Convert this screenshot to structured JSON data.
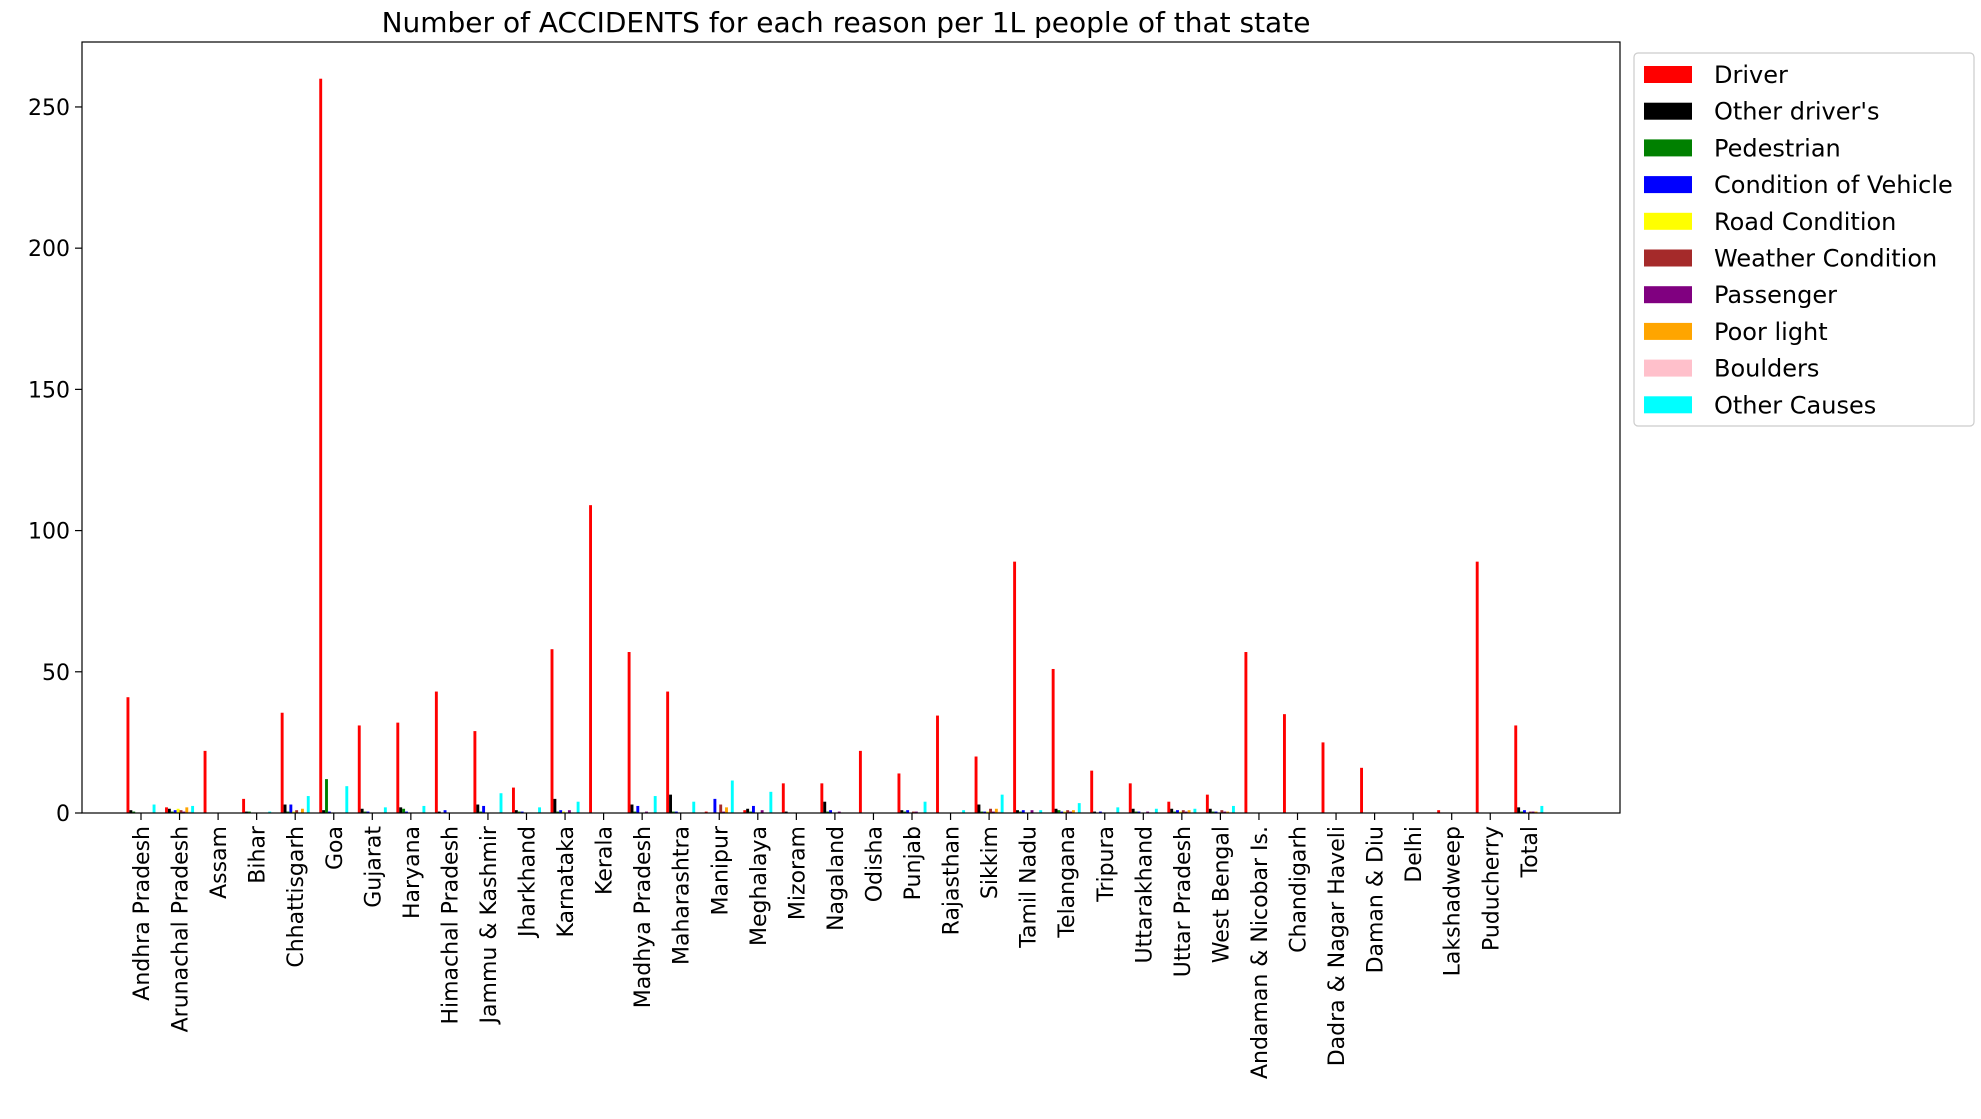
{
  "chart_data": {
    "type": "bar",
    "title": "Number of ACCIDENTS for each reason per 1L people of that state",
    "xlabel": "",
    "ylabel": "",
    "ylim": [
      0,
      273
    ],
    "yticks": [
      0,
      50,
      100,
      150,
      200,
      250
    ],
    "grid": false,
    "legend_position": "top-right (outside plot)",
    "categories": [
      "Andhra Pradesh",
      "Arunachal Pradesh",
      "Assam",
      "Bihar",
      "Chhattisgarh",
      "Goa",
      "Gujarat",
      "Haryana",
      "Himachal Pradesh",
      "Jammu & Kashmir",
      "Jharkhand",
      "Karnataka",
      "Kerala",
      "Madhya Pradesh",
      "Maharashtra",
      "Manipur",
      "Meghalaya",
      "Mizoram",
      "Nagaland",
      "Odisha",
      "Punjab",
      "Rajasthan",
      "Sikkim",
      "Tamil Nadu",
      "Telangana",
      "Tripura",
      "Uttarakhand",
      "Uttar Pradesh",
      "West Bengal",
      "Andaman & Nicobar Is.",
      "Chandigarh",
      "Dadra & Nagar Haveli",
      "Daman & Diu",
      "Delhi",
      "Lakshadweep",
      "Puducherry",
      "Total"
    ],
    "series": [
      {
        "name": "Driver",
        "color": "#ff0000",
        "values": [
          41,
          2,
          22,
          5,
          35.5,
          260,
          31,
          32,
          43,
          29,
          9,
          58,
          109,
          57,
          43,
          0.5,
          1,
          10.5,
          10.5,
          22,
          14,
          34.5,
          20,
          89,
          51,
          15,
          10.5,
          4,
          6.5,
          57,
          35,
          25,
          16,
          0,
          1,
          89,
          31
        ]
      },
      {
        "name": "Other driver's",
        "color": "#000000",
        "values": [
          1,
          1.5,
          0,
          0.5,
          3,
          1,
          1.5,
          2,
          0.5,
          3,
          1,
          5,
          0,
          3,
          6.5,
          0,
          1.5,
          0.5,
          4,
          0,
          1,
          0,
          3,
          1,
          1.5,
          0.5,
          1.5,
          1.5,
          1.5,
          0,
          0,
          0,
          0,
          0,
          0,
          0,
          2
        ]
      },
      {
        "name": "Pedestrian",
        "color": "#008000",
        "values": [
          0.5,
          0.5,
          0,
          0.5,
          0.5,
          12,
          0.5,
          1.5,
          0,
          0.5,
          0.5,
          0.5,
          0,
          0.5,
          0.5,
          0,
          0.5,
          0,
          0.5,
          0,
          0.5,
          0,
          0.5,
          0.5,
          1,
          0,
          0.5,
          0.5,
          0.5,
          0,
          0,
          0,
          0,
          0,
          0,
          0,
          0.5
        ]
      },
      {
        "name": "Condition of Vehicle",
        "color": "#0000ff",
        "values": [
          0,
          1,
          0,
          0,
          3,
          0.5,
          0.5,
          0.5,
          1,
          2.5,
          0.5,
          1,
          0,
          2.5,
          0.5,
          5,
          2.5,
          0,
          1,
          0,
          1,
          0,
          0.5,
          1,
          0.5,
          0.5,
          0.5,
          1,
          0.5,
          0,
          0,
          0,
          0,
          0,
          0,
          0,
          1
        ]
      },
      {
        "name": "Road Condition",
        "color": "#ffff00",
        "values": [
          0,
          1.5,
          0,
          0,
          0.5,
          0,
          0,
          0,
          0,
          0,
          0,
          0.5,
          0,
          0,
          0,
          0,
          0,
          0,
          0,
          0,
          0,
          0,
          0.5,
          0,
          0.5,
          0,
          0,
          0.5,
          0,
          0,
          0,
          0,
          0,
          0,
          0,
          0,
          0
        ]
      },
      {
        "name": "Weather Condition",
        "color": "#a52a2a",
        "values": [
          0,
          1,
          0,
          0,
          1,
          0,
          0,
          0,
          0,
          0,
          0,
          0,
          0,
          0,
          0,
          3,
          0,
          0,
          0,
          0,
          0.5,
          0,
          1.5,
          0,
          1,
          0,
          0,
          1,
          1,
          0,
          0,
          0,
          0,
          0,
          0,
          0,
          0.5
        ]
      },
      {
        "name": "Passenger",
        "color": "#800080",
        "values": [
          0,
          0.5,
          0,
          0,
          0,
          0,
          0,
          0,
          0,
          0,
          0,
          1,
          0,
          0.5,
          0,
          0.5,
          1,
          0,
          0.5,
          0,
          0.5,
          0,
          0.5,
          1,
          0.5,
          0,
          0.5,
          0.5,
          0.5,
          0,
          0,
          0,
          0,
          0,
          0,
          0,
          0.5
        ]
      },
      {
        "name": "Poor light",
        "color": "#ffa500",
        "values": [
          0,
          2,
          0,
          0,
          1.5,
          0,
          0,
          0,
          0,
          0,
          0,
          0,
          0,
          0,
          0,
          2,
          0,
          0,
          0,
          0,
          0,
          0,
          1.5,
          0,
          1,
          0,
          0,
          1,
          0.5,
          0,
          0,
          0,
          0,
          0,
          0,
          0,
          0.5
        ]
      },
      {
        "name": "Boulders",
        "color": "#ffc0cb",
        "values": [
          0,
          0.5,
          0,
          0,
          0,
          0,
          0,
          0,
          0,
          0,
          0,
          0,
          0,
          0,
          0,
          0,
          0,
          0,
          0,
          0,
          0,
          0,
          0.5,
          0,
          0,
          0,
          0,
          0,
          0,
          0,
          0,
          0,
          0,
          0,
          0,
          0,
          0
        ]
      },
      {
        "name": "Other Causes",
        "color": "#00ffff",
        "values": [
          3,
          2.5,
          0,
          0.5,
          6,
          9.5,
          2,
          2.5,
          0,
          7,
          2,
          4,
          0,
          6,
          4,
          11.5,
          7.5,
          0,
          0,
          0,
          4,
          1,
          6.5,
          1,
          3.5,
          2,
          1.5,
          1.5,
          2.5,
          0,
          0,
          0,
          0,
          0,
          0,
          0,
          2.5
        ]
      }
    ]
  }
}
